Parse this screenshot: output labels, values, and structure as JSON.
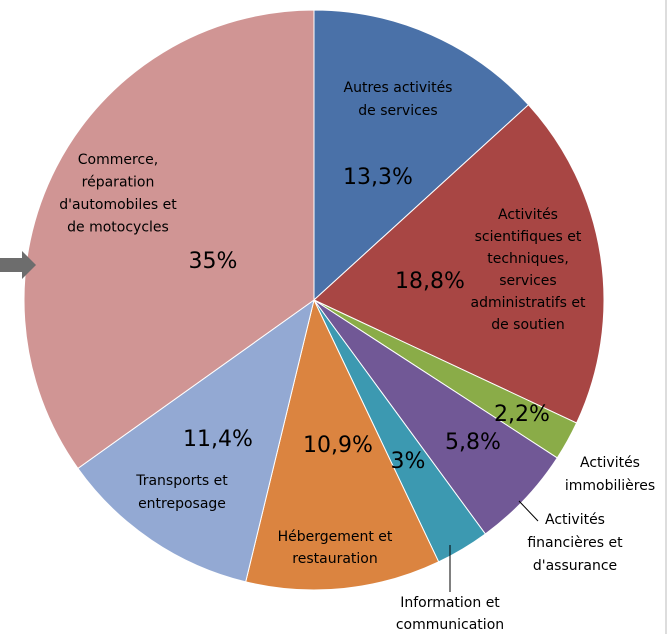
{
  "chart_data": {
    "type": "pie",
    "categories": [
      [
        "Autres activités",
        "de services"
      ],
      [
        "Activités",
        "scientifiques et",
        "techniques,",
        "services",
        "administratifs et",
        "de soutien"
      ],
      [
        "Activités",
        "immobilières"
      ],
      [
        "Activités",
        "financières et",
        "d'assurance"
      ],
      [
        "Information et",
        "communication"
      ],
      [
        "Hébergement et",
        "restauration"
      ],
      [
        "Transports et",
        "entreposage"
      ],
      [
        "Commerce,",
        "réparation",
        "d'automobiles et",
        "de motocycles"
      ]
    ],
    "values": [
      13.3,
      18.8,
      2.2,
      5.8,
      3,
      10.9,
      11.4,
      35
    ],
    "value_labels": [
      "13,3%",
      "18,8%",
      "2,2%",
      "5,8%",
      "3%",
      "10,9%",
      "11,4%",
      "35%"
    ],
    "colors": [
      "#4a71a8",
      "#a84644",
      "#8aac48",
      "#715896",
      "#3c99b1",
      "#db8440",
      "#93a9d3",
      "#d09594"
    ]
  }
}
